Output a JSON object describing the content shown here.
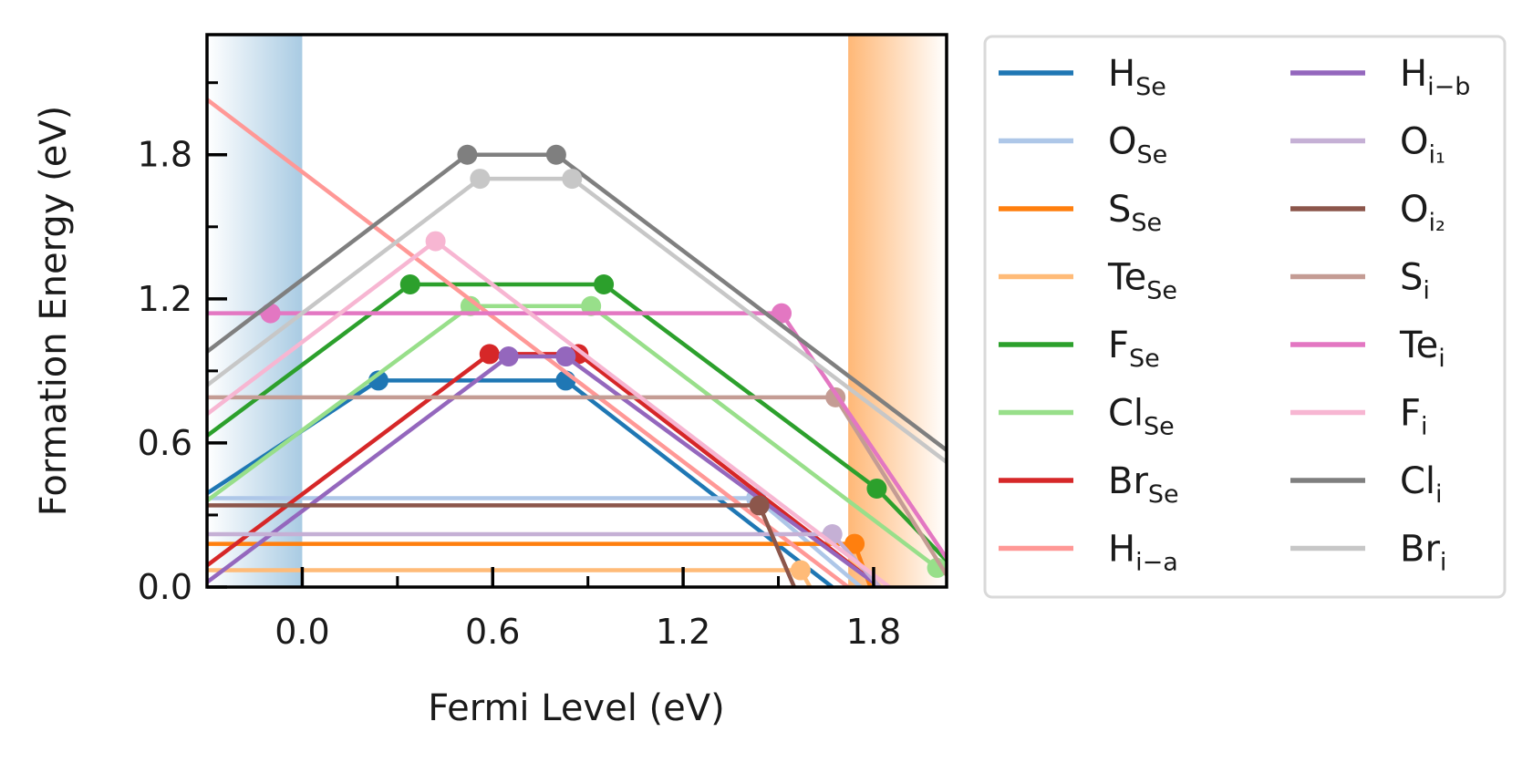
{
  "chart_data": {
    "type": "line",
    "title": "",
    "xlabel": "Fermi Level (eV)",
    "ylabel": "Formation Energy (eV)",
    "xlim": [
      -0.3,
      2.03
    ],
    "ylim": [
      0,
      2.3
    ],
    "xticks": [
      0.0,
      0.6,
      1.2,
      1.8
    ],
    "xtick_labels": [
      "0.0",
      "0.6",
      "1.2",
      "1.8"
    ],
    "yticks": [
      0.0,
      0.6,
      1.2,
      1.8
    ],
    "ytick_labels": [
      "0.0",
      "0.6",
      "1.2",
      "1.8"
    ],
    "grid": false,
    "legend": {
      "placement": "outside-right",
      "columns": 2
    },
    "bands": [
      {
        "region": "valence",
        "x": [
          -0.3,
          0.0
        ],
        "color": "#a9cbe3"
      },
      {
        "region": "conduction",
        "x": [
          1.72,
          2.03
        ],
        "color": "#ffb877"
      }
    ],
    "series": [
      {
        "name": "H",
        "sub": "Se",
        "color": "#1f77b4",
        "points": [
          [
            -0.3,
            0.39
          ],
          [
            0.24,
            0.86
          ],
          [
            0.83,
            0.86
          ],
          [
            1.67,
            0.0
          ]
        ],
        "markers": [
          [
            0.24,
            0.86
          ],
          [
            0.83,
            0.86
          ]
        ]
      },
      {
        "name": "O",
        "sub": "Se",
        "color": "#aec7e8",
        "points": [
          [
            -0.3,
            0.37
          ],
          [
            1.43,
            0.37
          ],
          [
            1.76,
            0.0
          ]
        ],
        "markers": [
          [
            1.43,
            0.37
          ]
        ]
      },
      {
        "name": "S",
        "sub": "Se",
        "color": "#ff7f0e",
        "points": [
          [
            -0.3,
            0.18
          ],
          [
            1.74,
            0.18
          ],
          [
            1.79,
            0.0
          ]
        ],
        "markers": [
          [
            1.74,
            0.18
          ]
        ]
      },
      {
        "name": "Te",
        "sub": "Se",
        "color": "#ffbb78",
        "points": [
          [
            -0.3,
            0.07
          ],
          [
            1.57,
            0.07
          ],
          [
            1.6,
            0.0
          ]
        ],
        "markers": [
          [
            1.57,
            0.07
          ]
        ]
      },
      {
        "name": "F",
        "sub": "Se",
        "color": "#2ca02c",
        "points": [
          [
            -0.3,
            0.63
          ],
          [
            0.34,
            1.26
          ],
          [
            0.95,
            1.26
          ],
          [
            1.81,
            0.41
          ],
          [
            2.03,
            0.11
          ]
        ],
        "markers": [
          [
            0.34,
            1.26
          ],
          [
            0.95,
            1.26
          ],
          [
            1.81,
            0.41
          ]
        ]
      },
      {
        "name": "Cl",
        "sub": "Se",
        "color": "#98df8a",
        "points": [
          [
            -0.3,
            0.36
          ],
          [
            0.53,
            1.17
          ],
          [
            0.91,
            1.17
          ],
          [
            2.0,
            0.08
          ],
          [
            2.03,
            0.06
          ]
        ],
        "markers": [
          [
            0.53,
            1.17
          ],
          [
            0.91,
            1.17
          ],
          [
            2.0,
            0.08
          ]
        ]
      },
      {
        "name": "Br",
        "sub": "Se",
        "color": "#d62728",
        "points": [
          [
            -0.3,
            0.09
          ],
          [
            0.59,
            0.97
          ],
          [
            0.87,
            0.97
          ],
          [
            1.82,
            0.0
          ]
        ],
        "markers": [
          [
            0.59,
            0.97
          ],
          [
            0.87,
            0.97
          ]
        ]
      },
      {
        "name": "H",
        "sub": "i−a",
        "color": "#ff9896",
        "points": [
          [
            -0.3,
            2.03
          ],
          [
            1.72,
            0.0
          ]
        ],
        "markers": []
      },
      {
        "name": "H",
        "sub": "i−b",
        "color": "#9467bd",
        "points": [
          [
            -0.3,
            0.02
          ],
          [
            0.65,
            0.96
          ],
          [
            0.83,
            0.96
          ],
          [
            1.82,
            0.0
          ]
        ],
        "markers": [
          [
            0.65,
            0.96
          ],
          [
            0.83,
            0.96
          ]
        ]
      },
      {
        "name": "O",
        "sub": "i₁",
        "color": "#c5b0d5",
        "points": [
          [
            -0.3,
            0.22
          ],
          [
            1.67,
            0.22
          ],
          [
            1.82,
            0.0
          ]
        ],
        "markers": [
          [
            1.67,
            0.22
          ]
        ]
      },
      {
        "name": "O",
        "sub": "i₂",
        "color": "#8c564b",
        "points": [
          [
            -0.3,
            0.34
          ],
          [
            1.44,
            0.34
          ],
          [
            1.55,
            0.0
          ]
        ],
        "markers": [
          [
            1.44,
            0.34
          ]
        ]
      },
      {
        "name": "S",
        "sub": "i",
        "color": "#c49c94",
        "points": [
          [
            -0.3,
            0.79
          ],
          [
            1.68,
            0.79
          ],
          [
            2.03,
            0.05
          ]
        ],
        "markers": [
          [
            1.68,
            0.79
          ]
        ]
      },
      {
        "name": "Te",
        "sub": "i",
        "color": "#e377c2",
        "points": [
          [
            -0.3,
            1.14
          ],
          [
            1.51,
            1.14
          ],
          [
            2.03,
            0.12
          ]
        ],
        "markers": [
          [
            -0.1,
            1.14
          ],
          [
            1.51,
            1.14
          ]
        ]
      },
      {
        "name": "F",
        "sub": "i",
        "color": "#f7b6d2",
        "points": [
          [
            -0.3,
            0.72
          ],
          [
            0.42,
            1.44
          ],
          [
            1.85,
            0.0
          ]
        ],
        "markers": [
          [
            0.42,
            1.44
          ]
        ]
      },
      {
        "name": "Cl",
        "sub": "i",
        "color": "#7f7f7f",
        "points": [
          [
            -0.3,
            0.98
          ],
          [
            0.52,
            1.8
          ],
          [
            0.8,
            1.8
          ],
          [
            2.03,
            0.57
          ]
        ],
        "markers": [
          [
            0.52,
            1.8
          ],
          [
            0.8,
            1.8
          ]
        ]
      },
      {
        "name": "Br",
        "sub": "i",
        "color": "#c7c7c7",
        "points": [
          [
            -0.3,
            0.84
          ],
          [
            0.56,
            1.7
          ],
          [
            0.85,
            1.7
          ],
          [
            2.03,
            0.52
          ]
        ],
        "markers": [
          [
            0.56,
            1.7
          ],
          [
            0.85,
            1.7
          ]
        ]
      }
    ]
  }
}
